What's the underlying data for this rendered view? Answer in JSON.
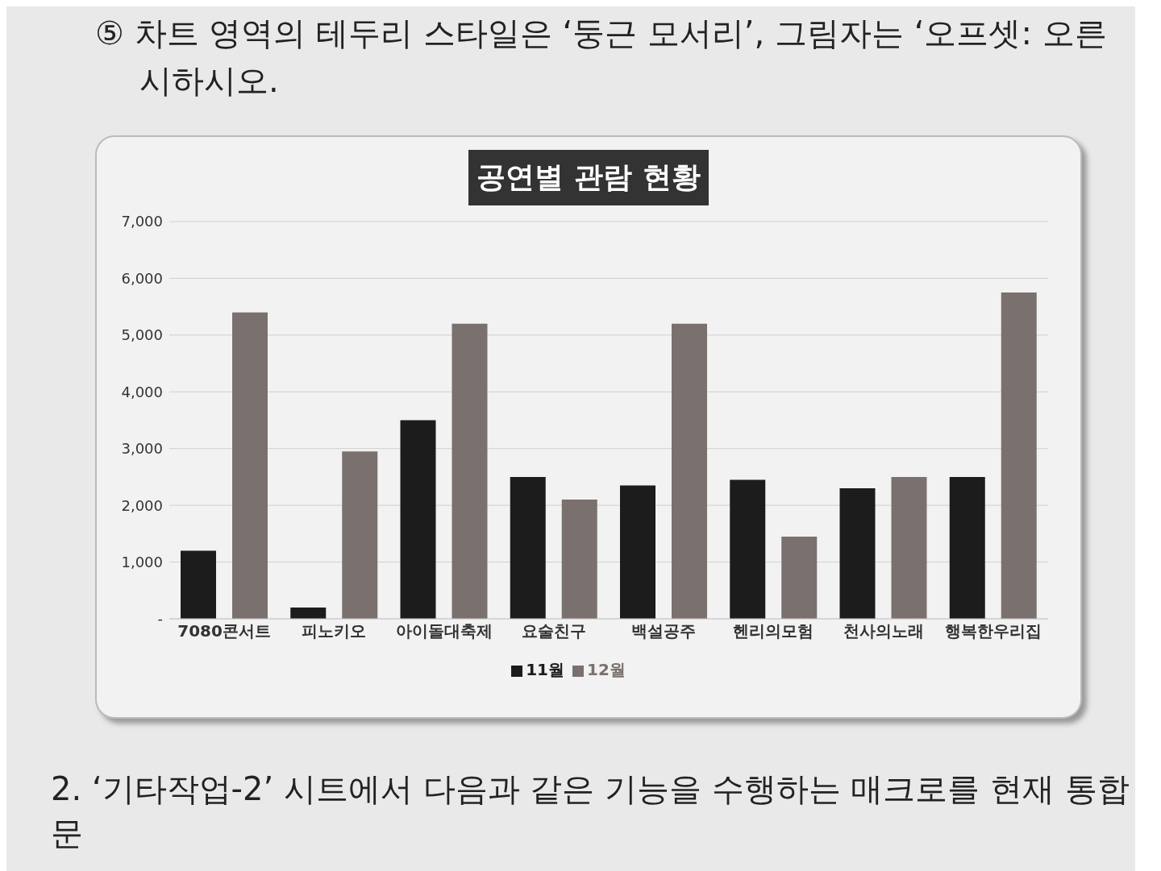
{
  "chart_data": {
    "type": "bar",
    "title": "공연별 관람 현황",
    "categories": [
      "7080콘서트",
      "피노키오",
      "아이돌대축제",
      "요술친구",
      "백설공주",
      "헨리의모험",
      "천사의노래",
      "행복한우리집"
    ],
    "series": [
      {
        "name": "11월",
        "color": "#1c1c1c",
        "values": [
          1200,
          200,
          3500,
          2500,
          2350,
          2450,
          2300,
          2500
        ]
      },
      {
        "name": "12월",
        "color": "#7a716e",
        "values": [
          5400,
          2950,
          5200,
          2100,
          5200,
          1450,
          2500,
          5750
        ]
      }
    ],
    "ylim": [
      0,
      7000
    ],
    "yticks": [
      {
        "value": 0,
        "label": "-"
      },
      {
        "value": 1000,
        "label": "1,000"
      },
      {
        "value": 2000,
        "label": "2,000"
      },
      {
        "value": 3000,
        "label": "3,000"
      },
      {
        "value": 4000,
        "label": "4,000"
      },
      {
        "value": 5000,
        "label": "5,000"
      },
      {
        "value": 6000,
        "label": "6,000"
      },
      {
        "value": 7000,
        "label": "7,000"
      }
    ],
    "grid": "y",
    "legend": "bottom",
    "annotations": [
      "⑤ 차트 영역의 테두리 스타일은 ‘둥근 모서리’, 그림자는 ‘오프셋: 오른",
      "시하시오.",
      "2. ‘기타작업-2’ 시트에서 다음과 같은 기능을 수행하는 매크로를 현재 통합문"
    ]
  }
}
